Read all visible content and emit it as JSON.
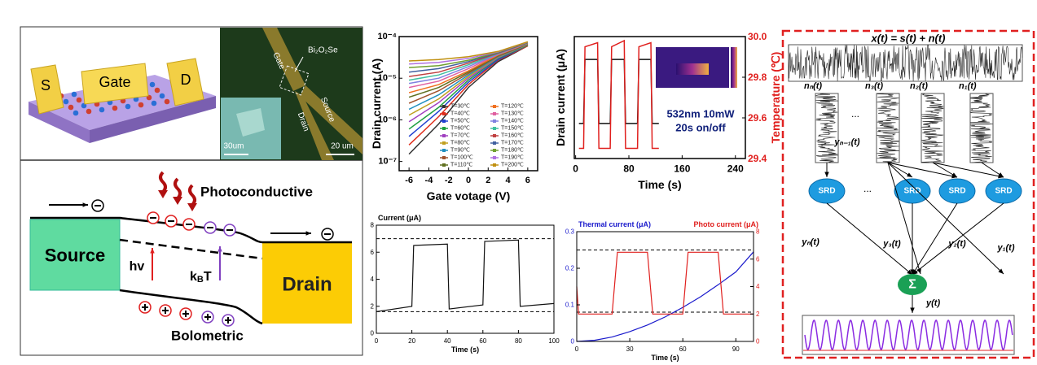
{
  "device": {
    "labels": {
      "s": "S",
      "gate": "Gate",
      "d": "D"
    },
    "micrograph": {
      "material": "Bi₂O₂Se",
      "gate": "Gate",
      "source": "Source",
      "drain": "Drain",
      "scale_inset": "30um",
      "scale": "20 um"
    }
  },
  "band_diagram": {
    "photoconductive": "Photoconductive",
    "source": "Source",
    "drain": "Drain",
    "hv": "hv",
    "kbt": {
      "base": "k",
      "sub": "B",
      "tail": "T"
    },
    "bolometric": "Bolometric"
  },
  "chart_data": [
    {
      "type": "line",
      "ylabel": "Drain current (A)",
      "xlabel": "Gate votage (V)",
      "ylog": true,
      "x": [
        -6,
        -3,
        0,
        3,
        6
      ],
      "xlim": [
        -7,
        7
      ],
      "xticks": [
        -6,
        -4,
        -2,
        0,
        2,
        4,
        6
      ],
      "ylim": [
        6e-08,
        0.0001
      ],
      "yticks": [
        {
          "value": 0.0001,
          "label": "10⁻⁴"
        },
        {
          "value": 1e-05,
          "label": "10⁻⁵"
        },
        {
          "value": 1e-06,
          "label": "10⁻⁶"
        },
        {
          "value": 1e-07,
          "label": "10⁻⁷"
        }
      ],
      "legend": "lower right",
      "series": [
        {
          "name": "T=30℃",
          "color": "#333333",
          "values": [
            1.5e-07,
            8e-07,
            6e-06,
            2.5e-05,
            6e-05
          ]
        },
        {
          "name": "T=40℃",
          "color": "#e0301e",
          "values": [
            2.5e-07,
            1.2e-06,
            7e-06,
            2.7e-05,
            6e-05
          ]
        },
        {
          "name": "T=50℃",
          "color": "#2040d0",
          "values": [
            4e-07,
            1.6e-06,
            8e-06,
            2.8e-05,
            6.2e-05
          ]
        },
        {
          "name": "T=60℃",
          "color": "#20a040",
          "values": [
            6e-07,
            2e-06,
            9e-06,
            3e-05,
            6.2e-05
          ]
        },
        {
          "name": "T=70℃",
          "color": "#a040c0",
          "values": [
            9e-07,
            2.6e-06,
            1e-05,
            3.1e-05,
            6.4e-05
          ]
        },
        {
          "name": "T=80℃",
          "color": "#c0a020",
          "values": [
            1.3e-06,
            3.2e-06,
            1.1e-05,
            3.2e-05,
            6.4e-05
          ]
        },
        {
          "name": "T=90℃",
          "color": "#2090c0",
          "values": [
            1.8e-06,
            4e-06,
            1.2e-05,
            3.3e-05,
            6.5e-05
          ]
        },
        {
          "name": "T=100℃",
          "color": "#a0522d",
          "values": [
            2.5e-06,
            5e-06,
            1.3e-05,
            3.4e-05,
            6.6e-05
          ]
        },
        {
          "name": "T=110℃",
          "color": "#607020",
          "values": [
            3.5e-06,
            6e-06,
            1.4e-05,
            3.5e-05,
            6.7e-05
          ]
        },
        {
          "name": "T=120℃",
          "color": "#f07020",
          "values": [
            4.5e-06,
            7e-06,
            1.5e-05,
            3.6e-05,
            6.8e-05
          ]
        },
        {
          "name": "T=130℃",
          "color": "#e060a0",
          "values": [
            6e-06,
            8.5e-06,
            1.7e-05,
            3.7e-05,
            6.9e-05
          ]
        },
        {
          "name": "T=140℃",
          "color": "#8080e0",
          "values": [
            7.5e-06,
            1e-05,
            1.9e-05,
            3.8e-05,
            7e-05
          ]
        },
        {
          "name": "T=150℃",
          "color": "#40c0a0",
          "values": [
            9e-06,
            1.2e-05,
            2.1e-05,
            3.9e-05,
            7e-05
          ]
        },
        {
          "name": "T=160℃",
          "color": "#c04040",
          "values": [
            1.1e-05,
            1.4e-05,
            2.3e-05,
            4e-05,
            7.1e-05
          ]
        },
        {
          "name": "T=170℃",
          "color": "#4060a0",
          "values": [
            1.4e-05,
            1.7e-05,
            2.5e-05,
            4.1e-05,
            7.2e-05
          ]
        },
        {
          "name": "T=180℃",
          "color": "#70a030",
          "values": [
            1.8e-05,
            2e-05,
            2.7e-05,
            4.2e-05,
            7.3e-05
          ]
        },
        {
          "name": "T=190℃",
          "color": "#b070e0",
          "values": [
            2.2e-05,
            2.4e-05,
            3e-05,
            4.3e-05,
            7.4e-05
          ]
        },
        {
          "name": "T=200℃",
          "color": "#c09010",
          "values": [
            2.6e-05,
            2.8e-05,
            3.3e-05,
            4.4e-05,
            7.5e-05
          ]
        }
      ]
    },
    {
      "type": "line",
      "ylabel": "Drain current (μA)",
      "y2label": "Temperature (℃)",
      "xlabel": "Time (s)",
      "xlim": [
        -2,
        255
      ],
      "xticks": [
        0,
        80,
        160,
        240
      ],
      "ylim": [
        0,
        8
      ],
      "y2lim": [
        29.4,
        30.0
      ],
      "y2ticks": [
        29.4,
        29.6,
        29.8,
        {
          "value": 30.0,
          "label": "30.0"
        }
      ],
      "y2color": "#e0201e",
      "inset": {
        "line1": "532nm  10mW",
        "line2": "20s on/off"
      },
      "series": [
        {
          "name": "Drain current",
          "color": "#111111",
          "x": [
            5,
            12,
            14,
            33,
            35,
            52,
            54,
            73,
            75,
            93,
            95,
            113,
            115,
            125
          ],
          "values": [
            2.3,
            2.3,
            6.5,
            6.5,
            2.3,
            2.3,
            6.5,
            6.5,
            2.3,
            2.3,
            6.5,
            6.5,
            2.3,
            2.3
          ]
        },
        {
          "name": "Temperature",
          "color": "#e0201e",
          "axis": "y2",
          "x": [
            5,
            12,
            14,
            33,
            35,
            52,
            54,
            73,
            75,
            93,
            95,
            113,
            115,
            125
          ],
          "values": [
            29.45,
            29.45,
            29.95,
            29.97,
            29.45,
            29.45,
            29.95,
            29.98,
            29.45,
            29.45,
            29.95,
            29.97,
            29.45,
            29.45
          ]
        }
      ]
    },
    {
      "type": "line",
      "ylabel": "Current (μA)",
      "xlabel": "Time (s)",
      "xlim": [
        0,
        100
      ],
      "xticks": [
        0,
        20,
        40,
        60,
        80,
        100
      ],
      "ylim": [
        0,
        8
      ],
      "yticks": [
        0,
        2,
        4,
        6,
        8
      ],
      "hlines": [
        7,
        1.6
      ],
      "series": [
        {
          "name": "Current",
          "color": "#111111",
          "x": [
            0,
            20,
            21,
            40,
            41,
            60,
            61,
            80,
            81,
            100
          ],
          "values": [
            1.6,
            2.0,
            6.5,
            6.6,
            1.8,
            2.1,
            6.8,
            6.9,
            2.0,
            2.2
          ]
        }
      ]
    },
    {
      "type": "line",
      "ylabel": "Thermal current (μA)",
      "y2label": "Photo current (μA)",
      "xlabel": "Time (s)",
      "xlim": [
        0,
        100
      ],
      "xticks": [
        0,
        30,
        60,
        90
      ],
      "ylim": [
        0,
        0.3
      ],
      "yticks": [
        0,
        0.1,
        0.2,
        0.3
      ],
      "ycolor": "#1a1acc",
      "y2lim": [
        0,
        8
      ],
      "y2ticks": [
        0,
        2,
        4,
        6,
        8
      ],
      "y2color": "#e0201e",
      "hlines": [
        0.25,
        0.08
      ],
      "series": [
        {
          "name": "Thermal current",
          "color": "#1a1acc",
          "x": [
            0,
            10,
            20,
            30,
            40,
            50,
            60,
            70,
            80,
            90,
            100
          ],
          "values": [
            0,
            0.003,
            0.012,
            0.027,
            0.045,
            0.067,
            0.093,
            0.122,
            0.155,
            0.19,
            0.245
          ]
        },
        {
          "name": "Photo current",
          "color": "#e0201e",
          "axis": "y2",
          "x": [
            0,
            1,
            20,
            23,
            40,
            43,
            60,
            63,
            80,
            83,
            100
          ],
          "values": [
            4,
            2,
            2,
            6.5,
            6.5,
            2,
            2,
            6.5,
            6.5,
            2,
            2
          ]
        }
      ]
    }
  ],
  "srd_diagram": {
    "equation": "x(t) = s(t) + n(t)",
    "noise_labels": [
      "nₙ(t)",
      "n₃(t)",
      "n₂(t)",
      "n₁(t)"
    ],
    "ellipsis": [
      "...",
      "..."
    ],
    "y_n_minus_1": "yₙ₋₁(t)",
    "srd": [
      "SRD",
      "SRD",
      "SRD",
      "SRD"
    ],
    "outputs": [
      "yₙ(t)",
      "y₃(t)",
      "y₂(t)",
      "y₁(t)"
    ],
    "sum": "Σ",
    "output": "y(t)"
  }
}
